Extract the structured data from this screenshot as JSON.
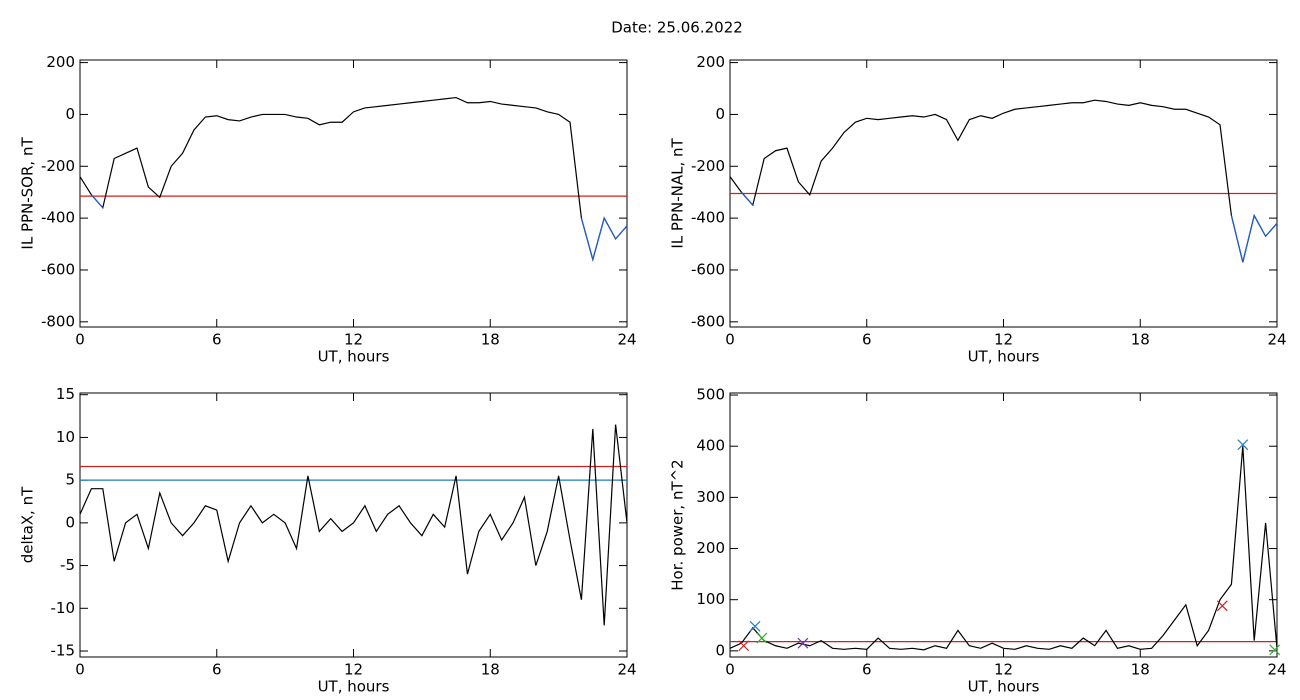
{
  "suptitle": "Date:  25.06.2022",
  "chart_data": [
    {
      "type": "line",
      "xlabel": "UT, hours",
      "ylabel": "IL PPN-SOR, nT",
      "xlim": [
        0,
        24
      ],
      "xticks": [
        0,
        6,
        12,
        18,
        24
      ],
      "ylim": [
        -820,
        210
      ],
      "yticks": [
        -800,
        -600,
        -400,
        -200,
        0,
        200
      ],
      "x": [
        0,
        0.5,
        1,
        1.5,
        2,
        2.5,
        3,
        3.5,
        4,
        4.5,
        5,
        5.5,
        6,
        6.5,
        7,
        7.5,
        8,
        8.5,
        9,
        9.5,
        10,
        10.5,
        11,
        11.5,
        12,
        12.5,
        13,
        13.5,
        14,
        14.5,
        15,
        15.5,
        16,
        16.5,
        17,
        17.5,
        18,
        18.5,
        19,
        19.5,
        20,
        20.5,
        21,
        21.5,
        22,
        22.5,
        23,
        23.5,
        24
      ],
      "series": [
        {
          "color": "#000000",
          "values": [
            -240,
            -310,
            -360,
            -170,
            -150,
            -130,
            -280,
            -320,
            -200,
            -150,
            -60,
            -10,
            -5,
            -20,
            -25,
            -10,
            0,
            0,
            0,
            -10,
            -15,
            -40,
            -30,
            -30,
            10,
            25,
            30,
            35,
            40,
            45,
            50,
            55,
            60,
            65,
            45,
            45,
            50,
            40,
            35,
            30,
            25,
            10,
            0,
            -30,
            -400,
            -560,
            -400,
            -480,
            -430
          ]
        },
        {
          "color": "#1f5fd0",
          "values": [
            null,
            -310,
            -360,
            null,
            null,
            null,
            null,
            null,
            null,
            null,
            null,
            null,
            null,
            null,
            null,
            null,
            null,
            null,
            null,
            null,
            null,
            null,
            null,
            null,
            null,
            null,
            null,
            null,
            null,
            null,
            null,
            null,
            null,
            null,
            null,
            null,
            null,
            null,
            null,
            null,
            null,
            null,
            null,
            null,
            -400,
            -560,
            -400,
            -480,
            -430
          ]
        }
      ],
      "hlines": [
        {
          "value": -315,
          "color": "#d02020"
        }
      ]
    },
    {
      "type": "line",
      "xlabel": "UT, hours",
      "ylabel": "IL PPN-NAL, nT",
      "xlim": [
        0,
        24
      ],
      "xticks": [
        0,
        6,
        12,
        18,
        24
      ],
      "ylim": [
        -820,
        210
      ],
      "yticks": [
        -800,
        -600,
        -400,
        -200,
        0,
        200
      ],
      "x": [
        0,
        0.5,
        1,
        1.5,
        2,
        2.5,
        3,
        3.5,
        4,
        4.5,
        5,
        5.5,
        6,
        6.5,
        7,
        7.5,
        8,
        8.5,
        9,
        9.5,
        10,
        10.5,
        11,
        11.5,
        12,
        12.5,
        13,
        13.5,
        14,
        14.5,
        15,
        15.5,
        16,
        16.5,
        17,
        17.5,
        18,
        18.5,
        19,
        19.5,
        20,
        20.5,
        21,
        21.5,
        22,
        22.5,
        23,
        23.5,
        24
      ],
      "series": [
        {
          "color": "#000000",
          "values": [
            -240,
            -300,
            -350,
            -170,
            -140,
            -130,
            -260,
            -310,
            -180,
            -130,
            -70,
            -30,
            -15,
            -20,
            -15,
            -10,
            -5,
            -10,
            0,
            -20,
            -100,
            -20,
            -5,
            -15,
            5,
            20,
            25,
            30,
            35,
            40,
            45,
            45,
            55,
            50,
            40,
            35,
            45,
            35,
            30,
            20,
            20,
            5,
            -10,
            -40,
            -390,
            -570,
            -390,
            -470,
            -420
          ]
        },
        {
          "color": "#1f5fd0",
          "values": [
            null,
            -300,
            -350,
            null,
            null,
            null,
            null,
            null,
            null,
            null,
            null,
            null,
            null,
            null,
            null,
            null,
            null,
            null,
            null,
            null,
            null,
            null,
            null,
            null,
            null,
            null,
            null,
            null,
            null,
            null,
            null,
            null,
            null,
            null,
            null,
            null,
            null,
            null,
            null,
            null,
            null,
            null,
            null,
            null,
            -390,
            -570,
            -390,
            -470,
            -420
          ]
        }
      ],
      "hlines": [
        {
          "value": -305,
          "color": "#d02020"
        }
      ]
    },
    {
      "type": "line",
      "xlabel": "UT, hours",
      "ylabel": "deltaX, nT",
      "xlim": [
        0,
        24
      ],
      "xticks": [
        0,
        6,
        12,
        18,
        24
      ],
      "ylim": [
        -15.7,
        15.2
      ],
      "yticks": [
        -15,
        -10,
        -5,
        0,
        5,
        10,
        15
      ],
      "x": [
        0,
        0.5,
        1,
        1.5,
        2,
        2.5,
        3,
        3.5,
        4,
        4.5,
        5,
        5.5,
        6,
        6.5,
        7,
        7.5,
        8,
        8.5,
        9,
        9.5,
        10,
        10.5,
        11,
        11.5,
        12,
        12.5,
        13,
        13.5,
        14,
        14.5,
        15,
        15.5,
        16,
        16.5,
        17,
        17.5,
        18,
        18.5,
        19,
        19.5,
        20,
        20.5,
        21,
        21.5,
        22,
        22.5,
        23,
        23.5,
        24
      ],
      "series": [
        {
          "color": "#000000",
          "values": [
            1,
            4,
            4,
            -4.5,
            0,
            1,
            -3,
            3.5,
            0,
            -1.5,
            0,
            2,
            1.5,
            -4.5,
            0,
            2,
            0,
            1,
            0,
            -3,
            5.5,
            -1,
            0.5,
            -1,
            0,
            2,
            -1,
            1,
            2,
            0,
            -1.5,
            1,
            -0.5,
            5.5,
            -6,
            -1,
            1,
            -2,
            0,
            3,
            -5,
            -1,
            5.5,
            -2,
            -9,
            11,
            -12,
            11.5,
            0
          ]
        }
      ],
      "hlines": [
        {
          "value": 6.6,
          "color": "#d02020"
        },
        {
          "value": 5.0,
          "color": "#1f7fc0"
        }
      ]
    },
    {
      "type": "line",
      "xlabel": "UT, hours",
      "ylabel": "Hor. power, nT^2",
      "xlim": [
        0,
        24
      ],
      "xticks": [
        0,
        6,
        12,
        18,
        24
      ],
      "ylim": [
        -12,
        504
      ],
      "yticks": [
        0,
        100,
        200,
        300,
        400,
        500
      ],
      "x": [
        0,
        0.5,
        1,
        1.5,
        2,
        2.5,
        3,
        3.5,
        4,
        4.5,
        5,
        5.5,
        6,
        6.5,
        7,
        7.5,
        8,
        8.5,
        9,
        9.5,
        10,
        10.5,
        11,
        11.5,
        12,
        12.5,
        13,
        13.5,
        14,
        14.5,
        15,
        15.5,
        16,
        16.5,
        17,
        17.5,
        18,
        18.5,
        19,
        19.5,
        20,
        20.5,
        21,
        21.5,
        22,
        22.5,
        23,
        23.5,
        24
      ],
      "series": [
        {
          "color": "#000000",
          "values": [
            5,
            15,
            45,
            20,
            10,
            5,
            15,
            10,
            20,
            5,
            3,
            5,
            3,
            25,
            5,
            3,
            5,
            2,
            10,
            5,
            40,
            10,
            5,
            15,
            5,
            3,
            10,
            5,
            3,
            10,
            5,
            25,
            10,
            40,
            5,
            10,
            3,
            5,
            30,
            60,
            90,
            10,
            40,
            100,
            130,
            400,
            20,
            250,
            5
          ]
        }
      ],
      "hlines": [
        {
          "value": 18,
          "color": "#d02020"
        }
      ],
      "markers": [
        {
          "x": 22.5,
          "y": 403,
          "color": "#1f7fc0"
        },
        {
          "x": 1.1,
          "y": 48,
          "color": "#1f7fc0"
        },
        {
          "x": 21.6,
          "y": 88,
          "color": "#d02020"
        },
        {
          "x": 0.6,
          "y": 10,
          "color": "#d02020"
        },
        {
          "x": 3.2,
          "y": 15,
          "color": "#7030a0"
        },
        {
          "x": 1.4,
          "y": 25,
          "color": "#30b030"
        },
        {
          "x": 23.9,
          "y": 2,
          "color": "#30b030"
        }
      ]
    }
  ]
}
